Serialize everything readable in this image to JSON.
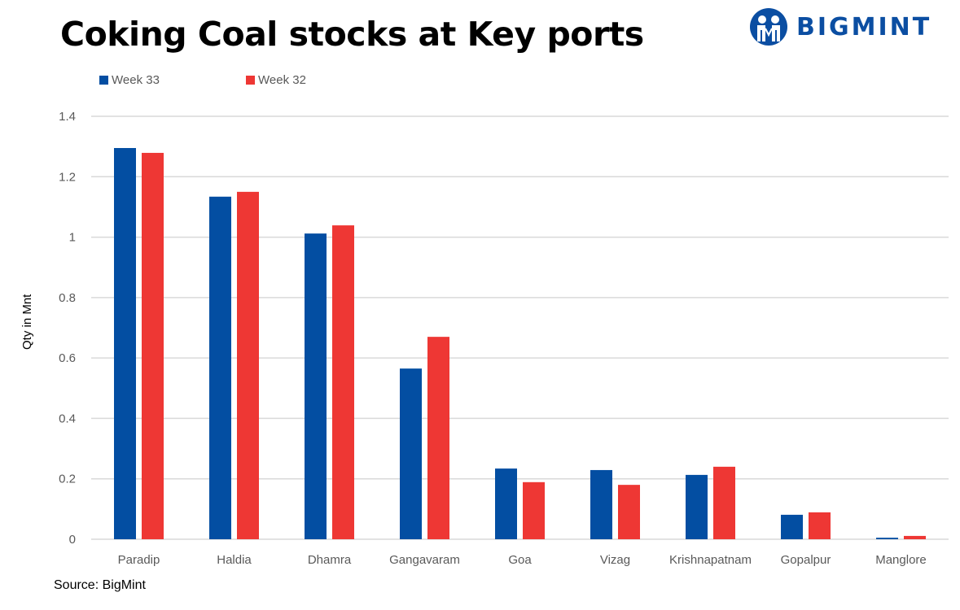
{
  "header": {
    "title": "Coking Coal stocks at Key ports",
    "logo_text": "BIGMINT"
  },
  "footer": {
    "source": "Source: BigMint"
  },
  "colors": {
    "week33": "#034ea2",
    "week32": "#ee3734",
    "grid": "#d9d9d9",
    "tick_text": "#595959",
    "brand": "#0b4ea2"
  },
  "chart_data": {
    "type": "bar",
    "title": "Coking Coal stocks at Key ports",
    "xlabel": "",
    "ylabel": "Qty in Mnt",
    "ylim": [
      0,
      1.4
    ],
    "yticks": [
      0,
      0.2,
      0.4,
      0.6,
      0.8,
      1,
      1.2,
      1.4
    ],
    "ytick_labels": [
      "0",
      "0.2",
      "0.4",
      "0.6",
      "0.8",
      "1",
      "1.2",
      "1.4"
    ],
    "grid": true,
    "legend_position": "top-left",
    "categories": [
      "Paradip",
      "Haldia",
      "Dhamra",
      "Gangavaram",
      "Goa",
      "Vizag",
      "Krishnapatnam",
      "Gopalpur",
      "Manglore"
    ],
    "series": [
      {
        "name": "Week 33",
        "color": "#034ea2",
        "values": [
          1.295,
          1.134,
          1.012,
          0.565,
          0.234,
          0.229,
          0.213,
          0.081,
          0.005
        ]
      },
      {
        "name": "Week 32",
        "color": "#ee3734",
        "values": [
          1.279,
          1.15,
          1.039,
          0.67,
          0.189,
          0.18,
          0.24,
          0.089,
          0.011
        ]
      }
    ],
    "annotations": [
      "Source: BigMint"
    ]
  }
}
